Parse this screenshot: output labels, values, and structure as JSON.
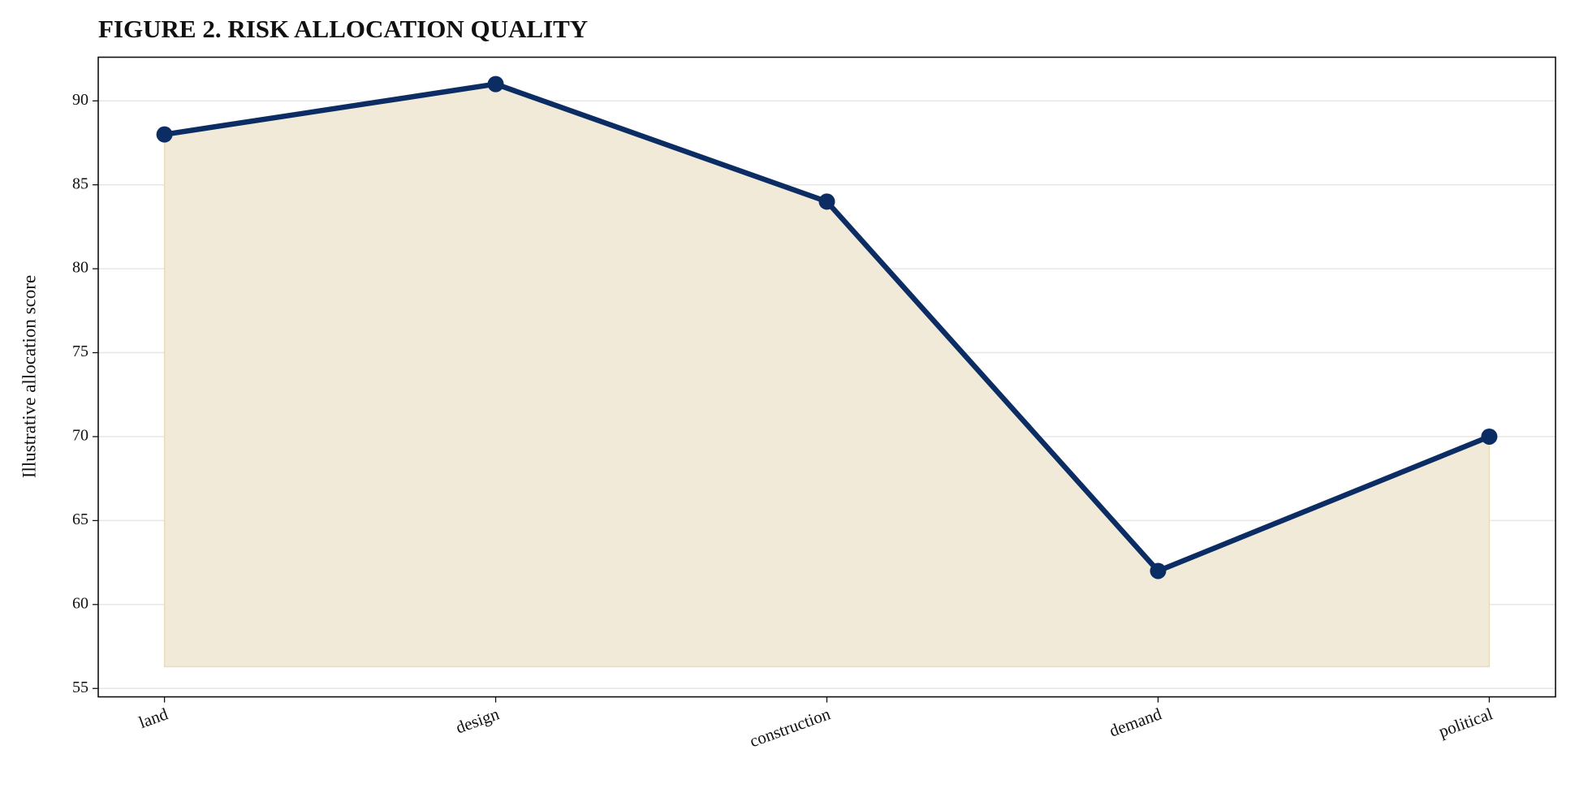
{
  "chart_data": {
    "type": "line",
    "title": "FIGURE 2. RISK ALLOCATION QUALITY",
    "y_label": "Illustrative allocation score",
    "categories": [
      "land",
      "design",
      "construction",
      "demand",
      "political"
    ],
    "values": [
      88,
      91,
      84,
      62,
      70
    ],
    "color": "#0b2d64",
    "fill_color": "#f2ead9",
    "fill_baseline": 56.3,
    "xlim": [
      -0.2,
      4.2
    ],
    "ylim": [
      54.5,
      92.6
    ],
    "yticks": [
      55,
      60,
      65,
      70,
      75,
      80,
      85,
      90
    ],
    "grid": true
  }
}
